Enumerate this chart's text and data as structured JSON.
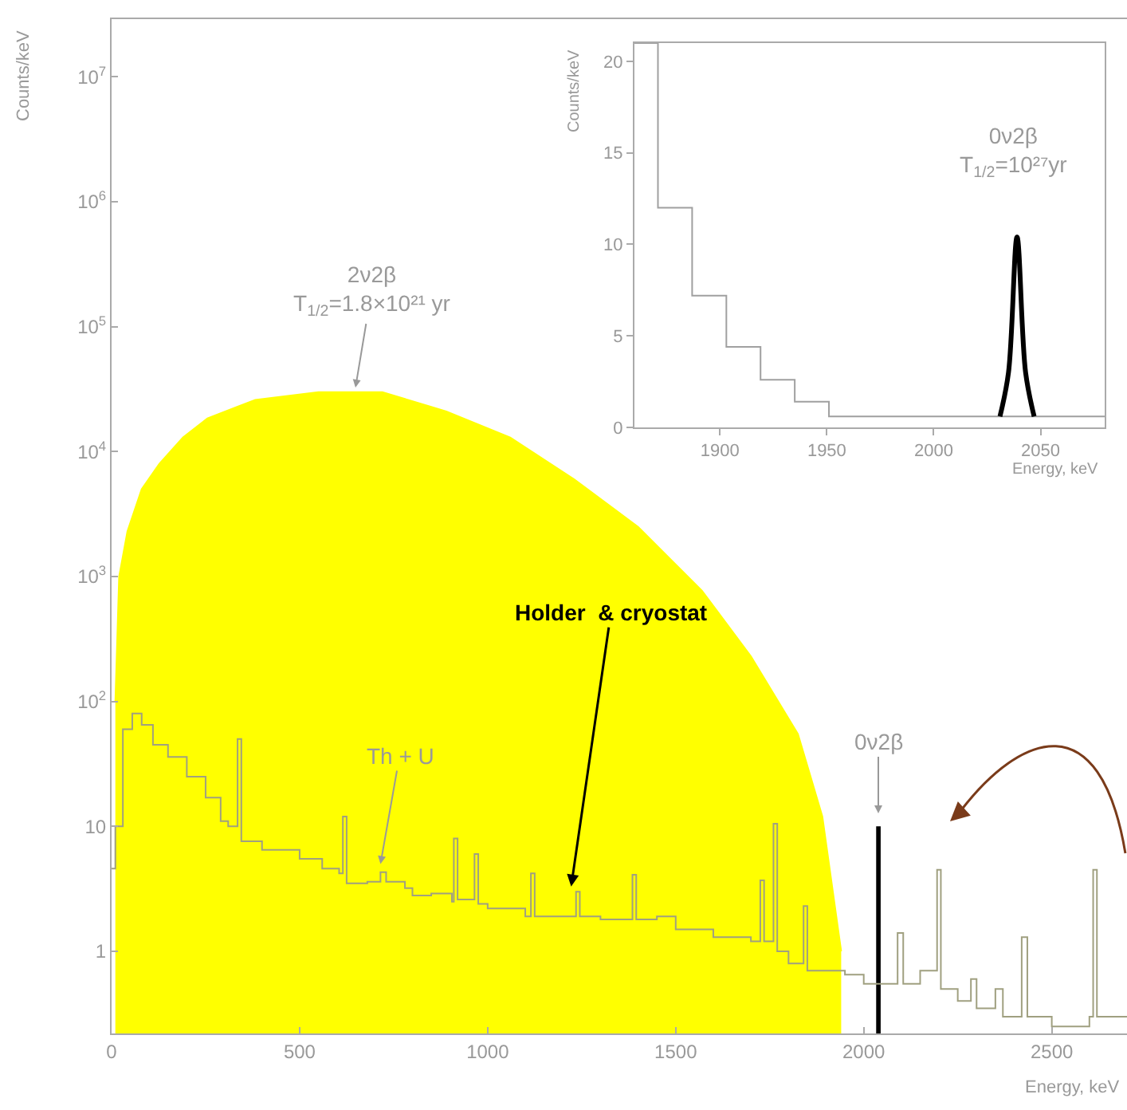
{
  "chart_data": [
    {
      "type": "step",
      "xlabel": "Energy, keV",
      "ylabel": "Counts/keV",
      "log": "y",
      "xlim": [
        0,
        2700
      ],
      "xticks": [
        0,
        500,
        1000,
        1500,
        2000,
        2500
      ],
      "ylim": [
        0.22,
        29000000
      ],
      "yticks": [
        1,
        10,
        {
          "value": 100,
          "label": "10$^{2}$"
        },
        {
          "value": 1000,
          "label": "10$^{3}$"
        },
        {
          "value": 10000,
          "label": "10$^{4}$"
        },
        {
          "value": 100000,
          "label": "10$^{5}$"
        },
        {
          "value": 1000000,
          "label": "10$^{6}$"
        },
        {
          "value": 10000000,
          "label": "10$^{7}$"
        }
      ],
      "series": [
        {
          "type": "area",
          "color": "#ffff00",
          "x": [
            10,
            20,
            42,
            80,
            127,
            190,
            255,
            382,
            550,
            720,
            890,
            1060,
            1230,
            1400,
            1570,
            1700,
            1825,
            1890,
            1940
          ],
          "values": [
            100,
            1000,
            2300,
            5000,
            8000,
            13000,
            18500,
            26000,
            30000,
            30000,
            21000,
            13000,
            6000,
            2500,
            770,
            230,
            55,
            12,
            1
          ]
        },
        {
          "color": "#a0a080",
          "x": [
            0,
            10,
            30,
            55,
            80,
            110,
            150,
            200,
            250,
            290,
            310,
            335,
            345,
            400,
            500,
            560,
            605,
            615,
            625,
            680,
            715,
            730,
            780,
            800,
            850,
            905,
            910,
            920,
            960,
            965,
            975,
            1000,
            1100,
            1115,
            1125,
            1200,
            1235,
            1245,
            1300,
            1385,
            1395,
            1450,
            1500,
            1600,
            1700,
            1725,
            1735,
            1760,
            1770,
            1800,
            1840,
            1850,
            1950,
            2000,
            2090,
            2105,
            2150,
            2195,
            2205,
            2250,
            2285,
            2300,
            2350,
            2370,
            2420,
            2435,
            2500,
            2600,
            2610,
            2620,
            2700
          ],
          "values": [
            4.6,
            10,
            60,
            80,
            65,
            45,
            36,
            25,
            17,
            11,
            10,
            50,
            7.6,
            6.5,
            5.5,
            4.6,
            4.2,
            12,
            3.5,
            3.6,
            4.3,
            3.6,
            3.2,
            2.8,
            2.9,
            2.5,
            8,
            2.6,
            2.6,
            6,
            2.4,
            2.2,
            1.9,
            4.2,
            1.9,
            1.9,
            3,
            1.9,
            1.8,
            4.1,
            1.8,
            1.9,
            1.5,
            1.3,
            1.2,
            3.7,
            1.2,
            10.5,
            1.0,
            0.8,
            2.3,
            0.7,
            0.65,
            0.55,
            1.4,
            0.55,
            0.7,
            4.5,
            0.5,
            0.4,
            0.6,
            0.35,
            0.5,
            0.3,
            1.3,
            0.3,
            0.25,
            0.3,
            4.5,
            0.3,
            0.3
          ]
        },
        {
          "type": "bar",
          "color": "#000000",
          "x": [
            2039
          ],
          "values": [
            10
          ]
        }
      ],
      "annotations": [
        "2ν2β\nT$_{1/2}$=1.8×10²¹ yr",
        {
          "text": "Th + U",
          "x": 715,
          "y": 5
        },
        {
          "text": "Holder  & cryostat",
          "x": 1222,
          "y": 3.3
        },
        "0ν2β"
      ]
    },
    {
      "type": "step",
      "xlabel": "Energy, keV",
      "ylabel": "Counts/keV",
      "xlim": [
        1860,
        2080
      ],
      "xticks": [
        1900,
        1950,
        2000,
        2050
      ],
      "ylim": [
        0,
        21
      ],
      "yticks": [
        0,
        5,
        10,
        15,
        20
      ],
      "series": [
        {
          "color": "#a0a0a0",
          "x": [
            1860,
            1871,
            1887,
            1903,
            1919,
            1935,
            1951,
            2080
          ],
          "values": [
            21,
            12,
            7.2,
            4.4,
            2.6,
            1.4,
            0.6,
            0.6
          ]
        },
        {
          "type": "line",
          "color": "#000000",
          "x": [
            2031,
            2035,
            2039,
            2043,
            2047
          ],
          "values": [
            0.6,
            3,
            10.4,
            3,
            0.6
          ]
        }
      ],
      "annotations": [
        "0ν2β\nT$_{1/2}$=10²⁷yr"
      ]
    }
  ]
}
